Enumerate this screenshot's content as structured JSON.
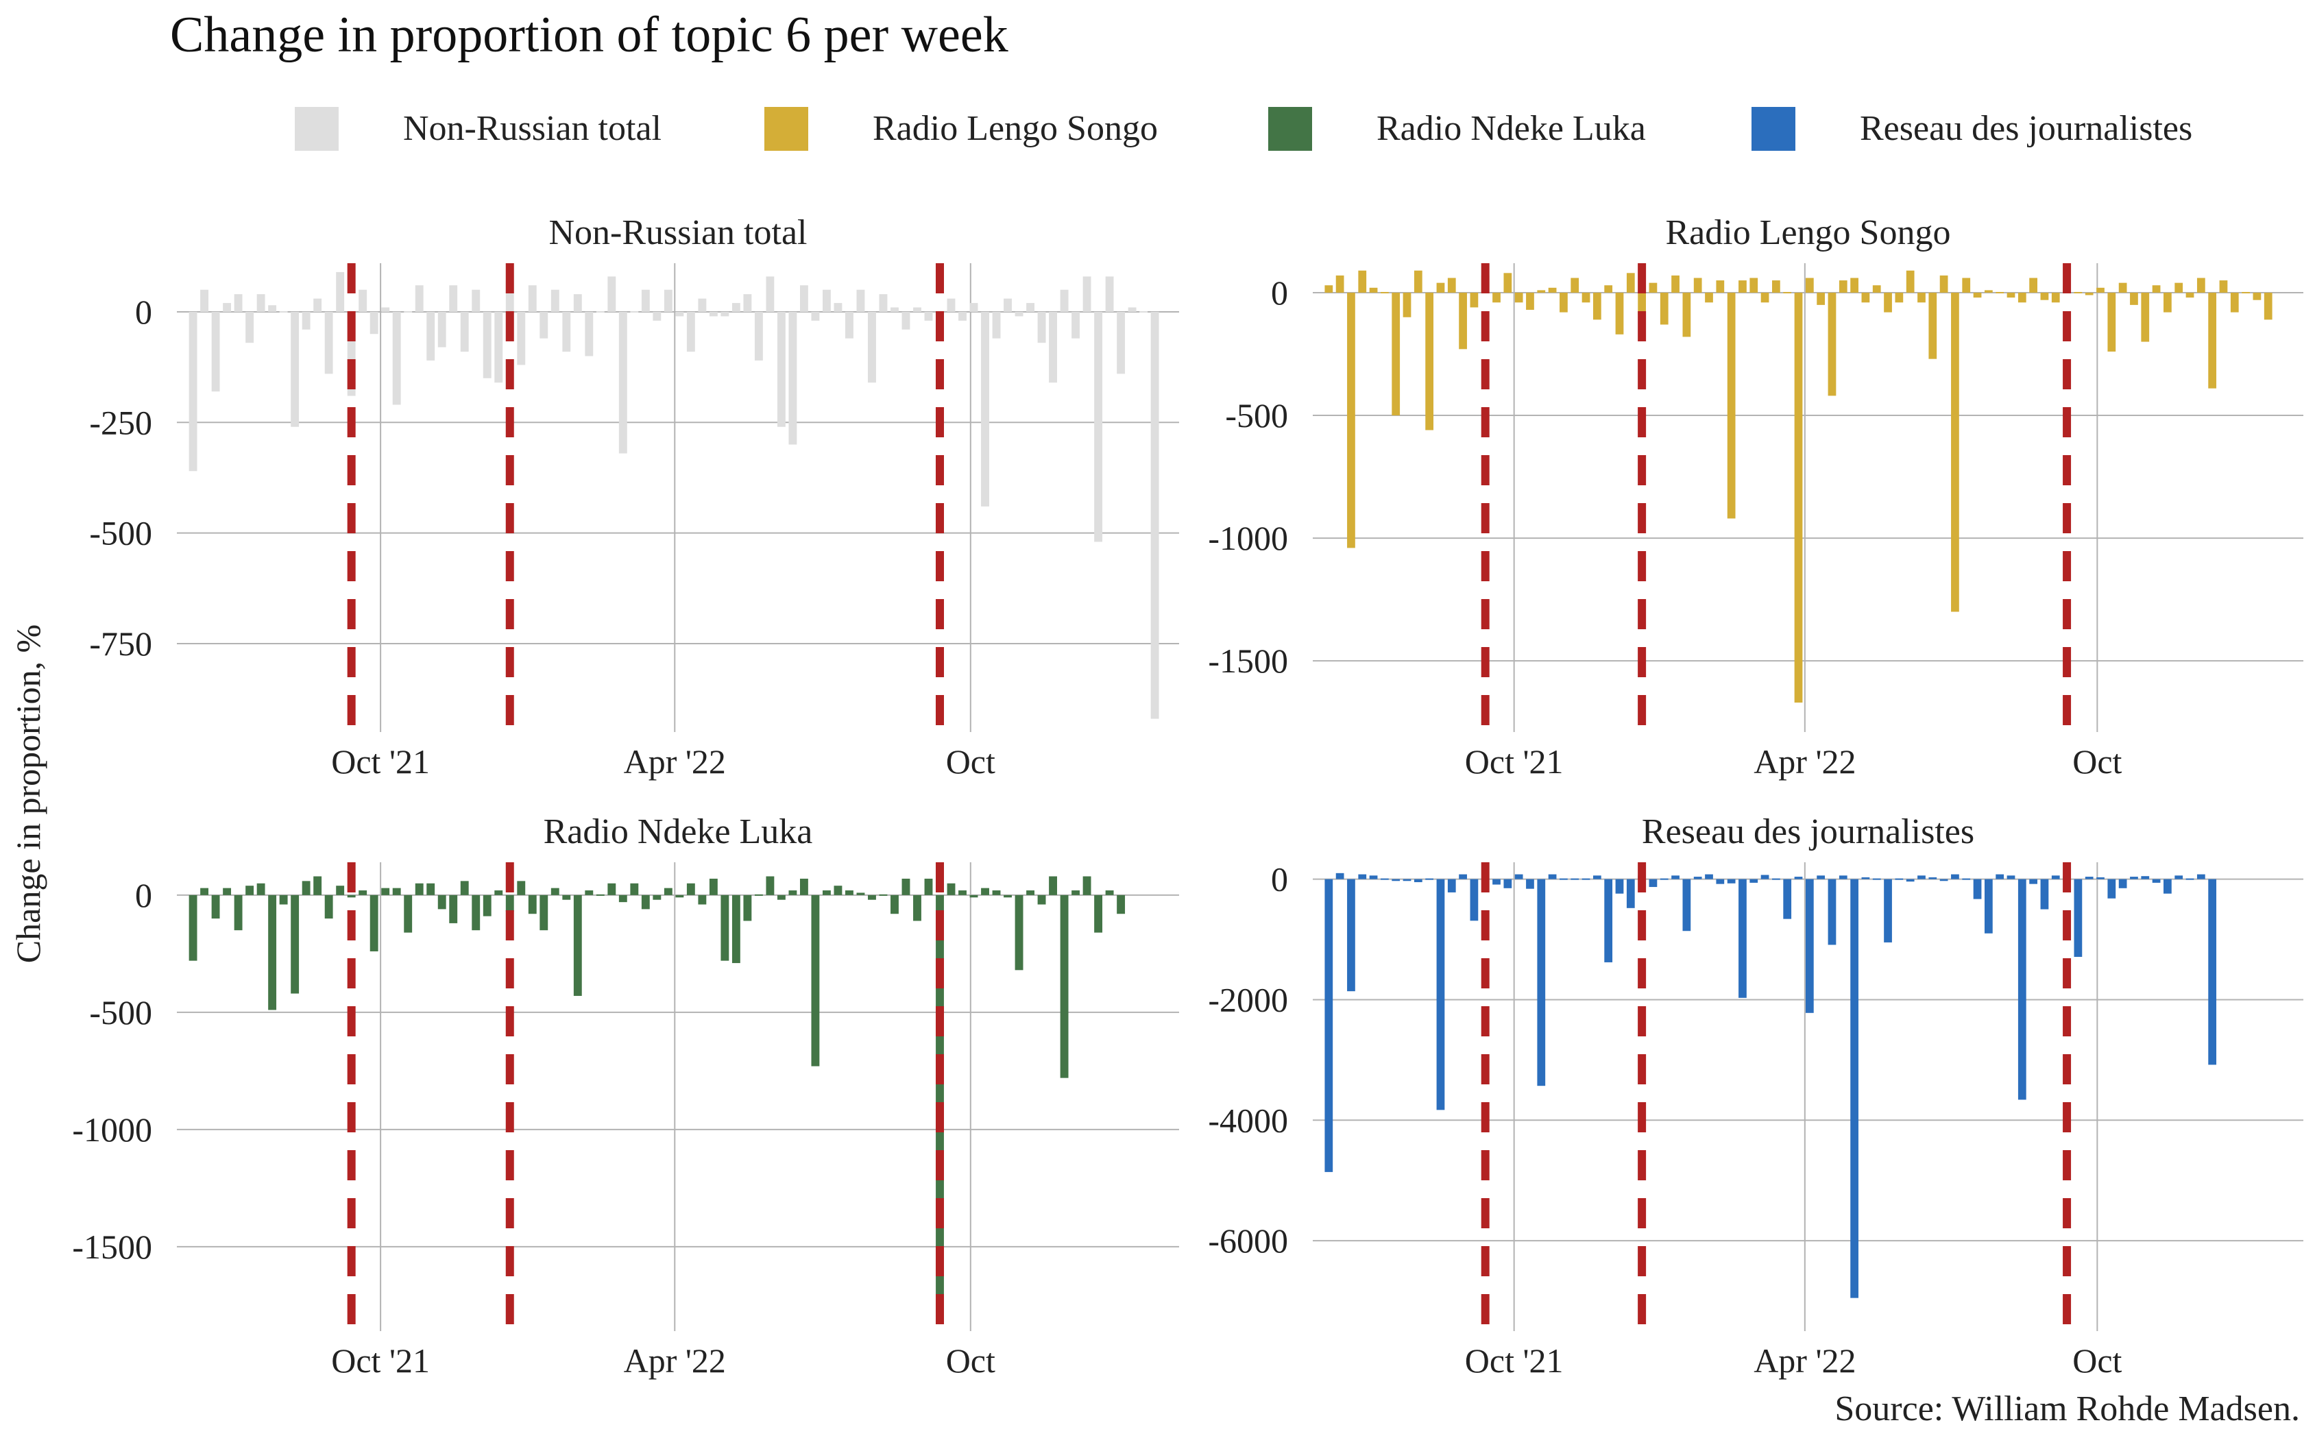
{
  "title": "Change in proportion of  topic 6 per week",
  "ylabel": "Change in proportion, %",
  "source": "Source: William Rohde Madsen.",
  "colors": {
    "event_line": "#b22222",
    "grid": "#b3b3b3",
    "text": "#222222"
  },
  "legend": [
    {
      "name": "Non-Russian total",
      "color": "#dedede"
    },
    {
      "name": "Radio Lengo Songo",
      "color": "#d4ae37"
    },
    {
      "name": "Radio Ndeke Luka",
      "color": "#437546"
    },
    {
      "name": "Reseau des journalistes",
      "color": "#2b6ebd"
    }
  ],
  "chart_data": [
    {
      "type": "bar",
      "title": "Non-Russian total",
      "color": "#dedede",
      "x_start": "2021-06-07",
      "x_step_days": 7,
      "x_range": [
        "2021-05-28",
        "2023-02-07"
      ],
      "ylim": [
        -950,
        110
      ],
      "yticks": [
        0,
        -250,
        -500,
        -750
      ],
      "xticks": [
        {
          "label": "Oct '21",
          "date": "2021-10-01"
        },
        {
          "label": "Apr '22",
          "date": "2022-04-01"
        },
        {
          "label": "Oct",
          "date": "2022-10-01"
        }
      ],
      "event_lines": [
        "2021-09-13",
        "2021-12-20",
        "2022-09-12"
      ],
      "values": [
        -360,
        50,
        -180,
        20,
        40,
        -70,
        40,
        15,
        0,
        -260,
        -40,
        30,
        -140,
        90,
        -190,
        50,
        -50,
        10,
        -210,
        0,
        60,
        -110,
        -80,
        60,
        -90,
        50,
        -150,
        -160,
        70,
        -120,
        60,
        -60,
        50,
        -90,
        40,
        -100,
        0,
        80,
        -320,
        0,
        50,
        -20,
        50,
        -10,
        -90,
        30,
        -10,
        -10,
        20,
        40,
        -110,
        80,
        -260,
        -300,
        60,
        -20,
        50,
        20,
        -60,
        50,
        -160,
        40,
        10,
        -40,
        10,
        -20,
        -40,
        30,
        -20,
        20,
        -440,
        -60,
        30,
        -10,
        20,
        -70,
        -160,
        50,
        -60,
        80,
        -520,
        80,
        -140,
        10,
        0,
        -920
      ]
    },
    {
      "type": "bar",
      "title": "Radio Lengo Songo",
      "color": "#d4ae37",
      "x_start": "2021-06-07",
      "x_step_days": 7,
      "x_range": [
        "2021-05-28",
        "2023-02-07"
      ],
      "ylim": [
        -1790,
        120
      ],
      "yticks": [
        0,
        -500,
        -1000,
        -1500
      ],
      "xticks": [
        {
          "label": "Oct '21",
          "date": "2021-10-01"
        },
        {
          "label": "Apr '22",
          "date": "2022-04-01"
        },
        {
          "label": "Oct",
          "date": "2022-10-01"
        }
      ],
      "event_lines": [
        "2021-09-13",
        "2021-12-20",
        "2022-09-12"
      ],
      "values": [
        30,
        70,
        -1040,
        90,
        20,
        0,
        -500,
        -100,
        90,
        -560,
        40,
        60,
        -230,
        -60,
        70,
        -40,
        80,
        -40,
        -70,
        10,
        20,
        -80,
        60,
        -40,
        -110,
        30,
        -170,
        80,
        -90,
        40,
        -130,
        70,
        -180,
        60,
        -40,
        50,
        -920,
        50,
        60,
        -40,
        50,
        0,
        -1670,
        60,
        -50,
        -420,
        50,
        60,
        -40,
        30,
        -80,
        -40,
        90,
        -40,
        -270,
        70,
        -1300,
        60,
        -20,
        10,
        0,
        -20,
        -40,
        60,
        -30,
        -40,
        30,
        0,
        -10,
        20,
        -240,
        40,
        -50,
        -200,
        30,
        -80,
        40,
        -20,
        60,
        -390,
        50,
        -80,
        0,
        -30,
        -110
      ]
    },
    {
      "type": "bar",
      "title": "Radio Ndeke Luka",
      "color": "#437546",
      "x_start": "2021-06-07",
      "x_step_days": 7,
      "x_range": [
        "2021-05-28",
        "2023-02-07"
      ],
      "ylim": [
        -1860,
        140
      ],
      "yticks": [
        0,
        -500,
        -1000,
        -1500
      ],
      "xticks": [
        {
          "label": "Oct '21",
          "date": "2021-10-01"
        },
        {
          "label": "Apr '22",
          "date": "2022-04-01"
        },
        {
          "label": "Oct",
          "date": "2022-10-01"
        }
      ],
      "event_lines": [
        "2021-09-13",
        "2021-12-20",
        "2022-09-12"
      ],
      "values": [
        -280,
        30,
        -100,
        30,
        -150,
        40,
        50,
        -490,
        -40,
        -420,
        60,
        80,
        -100,
        40,
        -10,
        20,
        -240,
        30,
        30,
        -160,
        50,
        50,
        -60,
        -120,
        60,
        -150,
        -90,
        20,
        -70,
        60,
        -80,
        -150,
        30,
        -20,
        -430,
        20,
        0,
        50,
        -30,
        50,
        -60,
        -20,
        30,
        -10,
        50,
        -40,
        70,
        -280,
        -290,
        -110,
        0,
        80,
        -20,
        20,
        70,
        -730,
        20,
        40,
        20,
        10,
        -20,
        0,
        -80,
        70,
        -110,
        70,
        -1770,
        50,
        20,
        -10,
        30,
        20,
        -10,
        -320,
        20,
        -40,
        80,
        -780,
        20,
        80,
        -160,
        20,
        -80
      ]
    },
    {
      "type": "bar",
      "title": "Reseau des journalistes",
      "color": "#2b6ebd",
      "x_start": "2021-06-07",
      "x_step_days": 7,
      "x_range": [
        "2021-05-28",
        "2023-02-07"
      ],
      "ylim": [
        -7500,
        280
      ],
      "yticks": [
        0,
        -2000,
        -4000,
        -6000
      ],
      "xticks": [
        {
          "label": "Oct '21",
          "date": "2021-10-01"
        },
        {
          "label": "Apr '22",
          "date": "2022-04-01"
        },
        {
          "label": "Oct",
          "date": "2022-10-01"
        }
      ],
      "event_lines": [
        "2021-09-13",
        "2021-12-20",
        "2022-09-12"
      ],
      "values": [
        -4860,
        100,
        -1860,
        80,
        60,
        20,
        -30,
        -30,
        -50,
        20,
        -3830,
        -220,
        80,
        -690,
        0,
        -90,
        -150,
        80,
        -160,
        -3430,
        80,
        0,
        0,
        0,
        60,
        -1380,
        -240,
        -480,
        60,
        -130,
        -20,
        60,
        -860,
        40,
        80,
        -80,
        -70,
        -1970,
        -60,
        70,
        0,
        -660,
        40,
        -2220,
        60,
        -1090,
        60,
        -6950,
        30,
        20,
        -1050,
        -20,
        -40,
        60,
        30,
        -30,
        80,
        -10,
        -330,
        -900,
        80,
        60,
        -3660,
        -80,
        -500,
        60,
        50,
        -1290,
        40,
        30,
        -320,
        -150,
        40,
        50,
        -60,
        -240,
        60,
        20,
        80,
        -3080
      ]
    }
  ]
}
